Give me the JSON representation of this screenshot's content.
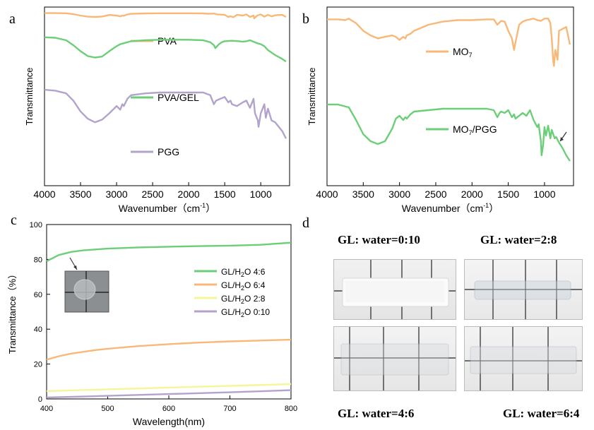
{
  "chart_data": [
    {
      "type": "line",
      "panel_label": "a",
      "xlabel": "Wavenumber（cm",
      "xlabel_sup": "-1",
      "xlabel_close": "）",
      "ylabel": "Transmittance",
      "xlim": [
        4000,
        600
      ],
      "x_ticks": [
        "4000",
        "3500",
        "3000",
        "2500",
        "2000",
        "1500",
        "1000"
      ],
      "series": [
        {
          "name": "PVA",
          "color": "#f8b878",
          "x": [
            4000,
            3850,
            3700,
            3600,
            3500,
            3400,
            3300,
            3200,
            3100,
            3000,
            2950,
            2920,
            2900,
            2850,
            2800,
            2600,
            2400,
            2200,
            2000,
            1800,
            1720,
            1650,
            1600,
            1500,
            1450,
            1420,
            1380,
            1330,
            1250,
            1200,
            1150,
            1100,
            1090,
            1050,
            1000,
            950,
            900,
            850,
            800,
            700,
            650
          ],
          "y": [
            97,
            97,
            96,
            90,
            80,
            72,
            70,
            73,
            84,
            80,
            74,
            80,
            78,
            88,
            92,
            95,
            96,
            96,
            96,
            95,
            92,
            94,
            88,
            85,
            70,
            75,
            68,
            85,
            80,
            88,
            70,
            80,
            60,
            80,
            88,
            72,
            85,
            74,
            82,
            85,
            70
          ]
        },
        {
          "name": "PVA/GEL",
          "color": "#6ccf78",
          "x": [
            4000,
            3850,
            3700,
            3600,
            3500,
            3400,
            3300,
            3200,
            3100,
            3000,
            2950,
            2900,
            2800,
            2600,
            2400,
            2200,
            2000,
            1800,
            1700,
            1650,
            1630,
            1580,
            1540,
            1500,
            1400,
            1300,
            1250,
            1200,
            1150,
            1100,
            1050,
            1000,
            950,
            900,
            800,
            700,
            650
          ],
          "y": [
            96,
            95,
            90,
            80,
            68,
            58,
            55,
            57,
            68,
            78,
            82,
            84,
            88,
            90,
            91,
            91,
            91,
            90,
            86,
            80,
            74,
            82,
            86,
            88,
            89,
            88,
            87,
            88,
            90,
            87,
            84,
            82,
            78,
            70,
            60,
            52,
            47
          ]
        },
        {
          "name": "PGG",
          "color": "#b3a3cc",
          "x": [
            4000,
            3850,
            3700,
            3600,
            3500,
            3400,
            3300,
            3200,
            3100,
            3000,
            2950,
            2920,
            2900,
            2850,
            2800,
            2600,
            2400,
            2200,
            2000,
            1800,
            1700,
            1650,
            1620,
            1560,
            1500,
            1450,
            1420,
            1400,
            1330,
            1250,
            1200,
            1150,
            1100,
            1080,
            1040,
            1030,
            1000,
            950,
            930,
            900,
            850,
            800,
            700,
            650
          ],
          "y": [
            96,
            95,
            92,
            84,
            72,
            64,
            60,
            63,
            70,
            78,
            74,
            80,
            78,
            86,
            90,
            92,
            93,
            93,
            93,
            93,
            90,
            80,
            84,
            86,
            88,
            82,
            84,
            80,
            78,
            82,
            84,
            76,
            86,
            70,
            62,
            55,
            70,
            80,
            65,
            75,
            62,
            60,
            50,
            42
          ]
        }
      ]
    },
    {
      "type": "line",
      "panel_label": "b",
      "xlabel": "Wavenumber（cm",
      "xlabel_sup": "-1",
      "xlabel_close": "）",
      "ylabel": "Transmittance",
      "xlim": [
        4000,
        600
      ],
      "x_ticks": [
        "4000",
        "3500",
        "3000",
        "2500",
        "2000",
        "1500",
        "1000"
      ],
      "series": [
        {
          "name": "MO",
          "name_sub": "7",
          "color": "#f8b878",
          "x": [
            4000,
            3850,
            3750,
            3700,
            3650,
            3600,
            3500,
            3400,
            3300,
            3200,
            3100,
            3050,
            3000,
            2950,
            2920,
            2900,
            2850,
            2800,
            2600,
            2400,
            2200,
            2000,
            1800,
            1700,
            1650,
            1600,
            1550,
            1500,
            1450,
            1420,
            1400,
            1350,
            1300,
            1250,
            1200,
            1150,
            1100,
            1050,
            1000,
            950,
            920,
            900,
            880,
            870,
            850,
            820,
            800,
            700,
            650
          ],
          "y": [
            95,
            95,
            94,
            96,
            93,
            90,
            80,
            74,
            70,
            72,
            74,
            72,
            68,
            72,
            70,
            74,
            76,
            80,
            88,
            92,
            94,
            94,
            95,
            95,
            88,
            93,
            92,
            80,
            70,
            55,
            65,
            88,
            92,
            94,
            95,
            96,
            94,
            93,
            96,
            96,
            90,
            70,
            40,
            34,
            55,
            42,
            80,
            85,
            62
          ]
        },
        {
          "name": "MO",
          "name_sub": "7",
          "name_suffix": "/PGG",
          "color": "#6ccf78",
          "x": [
            4000,
            3850,
            3700,
            3600,
            3500,
            3400,
            3300,
            3200,
            3100,
            3050,
            3000,
            2950,
            2920,
            2900,
            2850,
            2800,
            2600,
            2400,
            2200,
            2000,
            1800,
            1700,
            1650,
            1620,
            1600,
            1550,
            1500,
            1450,
            1420,
            1400,
            1350,
            1300,
            1250,
            1200,
            1150,
            1100,
            1080,
            1050,
            1040,
            1020,
            1000,
            980,
            950,
            920,
            900,
            880,
            860,
            840,
            800,
            750,
            700,
            650
          ],
          "y": [
            92,
            92,
            88,
            70,
            50,
            40,
            36,
            40,
            58,
            72,
            76,
            70,
            74,
            72,
            78,
            82,
            84,
            86,
            86,
            86,
            86,
            84,
            74,
            80,
            82,
            80,
            84,
            74,
            78,
            72,
            76,
            80,
            76,
            84,
            70,
            60,
            64,
            40,
            20,
            34,
            60,
            48,
            62,
            44,
            56,
            50,
            44,
            46,
            38,
            30,
            20,
            12
          ]
        }
      ],
      "annotation": "arrow"
    },
    {
      "type": "line",
      "panel_label": "c",
      "xlabel": "Wavelength(nm)",
      "ylabel": "Transmittance（%）",
      "xlim": [
        400,
        800
      ],
      "ylim": [
        0,
        100
      ],
      "x_ticks": [
        400,
        500,
        600,
        700,
        800
      ],
      "y_ticks": [
        0,
        20,
        40,
        60,
        80,
        100
      ],
      "series": [
        {
          "name": "GL/H",
          "name_sub": "2",
          "name_suffix": "O 4:6",
          "color": "#6ccf78",
          "x": [
            400,
            420,
            440,
            460,
            480,
            500,
            550,
            600,
            650,
            700,
            750,
            800
          ],
          "y": [
            79,
            82.5,
            84.3,
            85.2,
            85.7,
            86.2,
            86.9,
            87.3,
            87.6,
            87.9,
            88.4,
            89.6
          ]
        },
        {
          "name": "GL/H",
          "name_sub": "2",
          "name_suffix": "O 6:4",
          "color": "#f8b878",
          "x": [
            400,
            420,
            440,
            460,
            480,
            500,
            550,
            600,
            650,
            700,
            750,
            800
          ],
          "y": [
            22.5,
            24.5,
            26,
            27,
            28,
            28.8,
            30.3,
            31.4,
            32.3,
            33,
            33.5,
            34
          ]
        },
        {
          "name": "GL/H",
          "name_sub": "2",
          "name_suffix": "O 2:8",
          "color": "#f5f59a",
          "x": [
            400,
            500,
            600,
            700,
            800
          ],
          "y": [
            4.5,
            5.5,
            6.5,
            7.5,
            8.5
          ]
        },
        {
          "name": "GL/H",
          "name_sub": "2",
          "name_suffix": "O 0:10",
          "color": "#b3a3cc",
          "x": [
            400,
            500,
            600,
            700,
            800
          ],
          "y": [
            0.8,
            1.8,
            2.8,
            3.8,
            5
          ]
        }
      ]
    }
  ],
  "panel_d": {
    "label": "d",
    "captions": [
      "GL: water=0:10",
      "GL: water=2:8",
      "GL: water=4:6",
      "GL: water=6:4"
    ]
  }
}
